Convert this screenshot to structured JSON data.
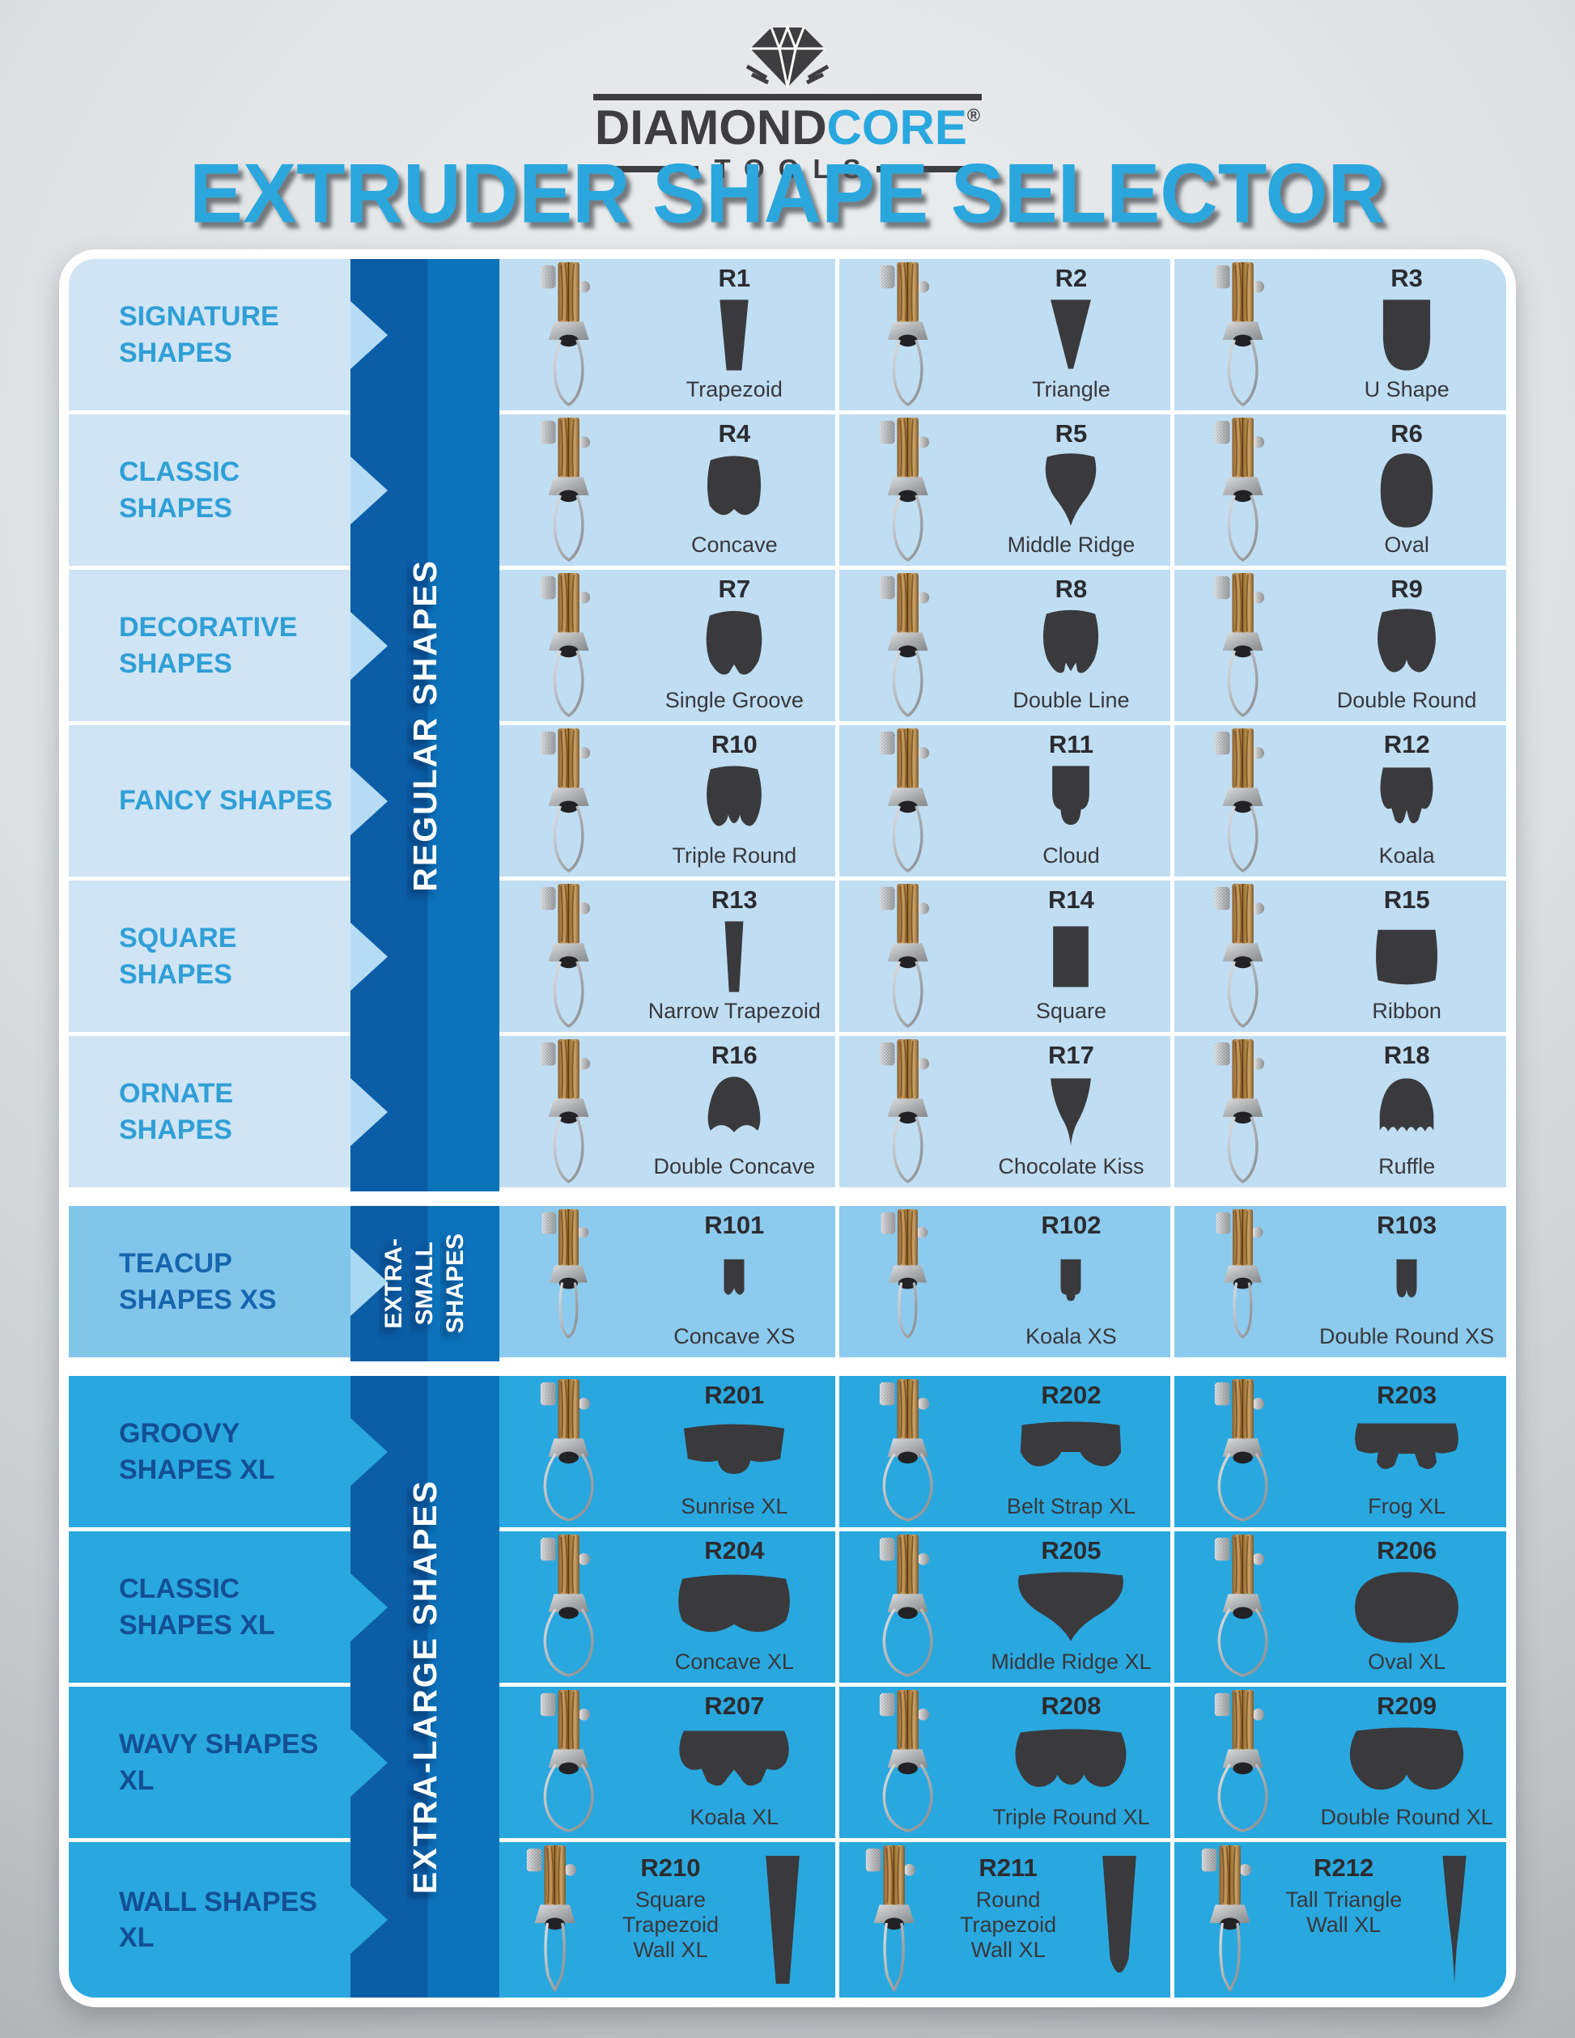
{
  "logo": {
    "diamond_icon": "diamond-icon",
    "word_dark": "DIAMOND",
    "word_blue": "CORE",
    "registered": "®",
    "tools": "TOOLS"
  },
  "title": "EXTRUDER SHAPE SELECTOR",
  "bands": [
    {
      "id": "regular",
      "lines": [
        "REGULAR SHAPES"
      ]
    },
    {
      "id": "xs",
      "lines": [
        "EXTRA-",
        "SMALL",
        "SHAPES"
      ]
    },
    {
      "id": "xl",
      "lines": [
        "EXTRA-LARGE SHAPES"
      ]
    }
  ],
  "rows": [
    {
      "category": "SIGNATURE SHAPES",
      "section": "regular",
      "items": [
        {
          "code": "R1",
          "name": "Trapezoid",
          "shape": "trapezoid"
        },
        {
          "code": "R2",
          "name": "Triangle",
          "shape": "triangle"
        },
        {
          "code": "R3",
          "name": "U Shape",
          "shape": "u-shape"
        }
      ]
    },
    {
      "category": "CLASSIC SHAPES",
      "section": "regular",
      "items": [
        {
          "code": "R4",
          "name": "Concave",
          "shape": "concave"
        },
        {
          "code": "R5",
          "name": "Middle Ridge",
          "shape": "middle-ridge"
        },
        {
          "code": "R6",
          "name": "Oval",
          "shape": "oval"
        }
      ]
    },
    {
      "category": "DECORATIVE SHAPES",
      "section": "regular",
      "items": [
        {
          "code": "R7",
          "name": "Single Groove",
          "shape": "single-groove"
        },
        {
          "code": "R8",
          "name": "Double Line",
          "shape": "double-line"
        },
        {
          "code": "R9",
          "name": "Double Round",
          "shape": "double-round"
        }
      ]
    },
    {
      "category": "FANCY SHAPES",
      "section": "regular",
      "items": [
        {
          "code": "R10",
          "name": "Triple Round",
          "shape": "triple-round"
        },
        {
          "code": "R11",
          "name": "Cloud",
          "shape": "cloud"
        },
        {
          "code": "R12",
          "name": "Koala",
          "shape": "koala"
        }
      ]
    },
    {
      "category": "SQUARE SHAPES",
      "section": "regular",
      "items": [
        {
          "code": "R13",
          "name": "Narrow Trapezoid",
          "shape": "narrow-trapezoid"
        },
        {
          "code": "R14",
          "name": "Square",
          "shape": "square"
        },
        {
          "code": "R15",
          "name": "Ribbon",
          "shape": "ribbon"
        }
      ]
    },
    {
      "category": "ORNATE SHAPES",
      "section": "regular",
      "items": [
        {
          "code": "R16",
          "name": "Double Concave",
          "shape": "double-concave"
        },
        {
          "code": "R17",
          "name": "Chocolate Kiss",
          "shape": "chocolate-kiss"
        },
        {
          "code": "R18",
          "name": "Ruffle",
          "shape": "ruffle"
        }
      ]
    },
    {
      "category": "TEACUP SHAPES XS",
      "section": "xs",
      "items": [
        {
          "code": "R101",
          "name": "Concave XS",
          "shape": "concave-xs"
        },
        {
          "code": "R102",
          "name": "Koala XS",
          "shape": "koala-xs"
        },
        {
          "code": "R103",
          "name": "Double Round XS",
          "shape": "double-round-xs"
        }
      ]
    },
    {
      "category": "GROOVY SHAPES XL",
      "section": "xl",
      "items": [
        {
          "code": "R201",
          "name": "Sunrise XL",
          "shape": "sunrise-xl"
        },
        {
          "code": "R202",
          "name": "Belt Strap XL",
          "shape": "belt-strap-xl"
        },
        {
          "code": "R203",
          "name": "Frog XL",
          "shape": "frog-xl"
        }
      ]
    },
    {
      "category": "CLASSIC SHAPES XL",
      "section": "xl",
      "items": [
        {
          "code": "R204",
          "name": "Concave XL",
          "shape": "concave-xl"
        },
        {
          "code": "R205",
          "name": "Middle Ridge XL",
          "shape": "middle-ridge-xl"
        },
        {
          "code": "R206",
          "name": "Oval XL",
          "shape": "oval-xl"
        }
      ]
    },
    {
      "category": "WAVY SHAPES XL",
      "section": "xl",
      "items": [
        {
          "code": "R207",
          "name": "Koala XL",
          "shape": "koala-xl"
        },
        {
          "code": "R208",
          "name": "Triple Round XL",
          "shape": "triple-round-xl"
        },
        {
          "code": "R209",
          "name": "Double Round XL",
          "shape": "double-round-xl"
        }
      ]
    },
    {
      "category": "WALL SHAPES XL",
      "section": "xl",
      "layout": "wall",
      "items": [
        {
          "code": "R210",
          "name": "Square Trapezoid Wall XL",
          "shape": "square-trapezoid-wall-xl"
        },
        {
          "code": "R211",
          "name": "Round Trapezoid Wall XL",
          "shape": "round-trapezoid-wall-xl"
        },
        {
          "code": "R212",
          "name": "Tall Triangle Wall XL",
          "shape": "tall-triangle-wall-xl"
        }
      ]
    }
  ],
  "colors": {
    "accent": "#29a8e0",
    "title_col": "#2ba7de",
    "band_dark": "#0b5da6",
    "band_light": "#0c72ba",
    "cell_reg": "#c0def3",
    "label_reg": "#cfe4f5",
    "cell_xs": "#8ccbee",
    "label_xs": "#82c5ea",
    "cell_xl": "#29a8e0",
    "cat_reg": "#2f9fd6",
    "cat_xs": "#1566ae",
    "cat_xl": "#134f92",
    "code_col": "#2c2c30",
    "name_col": "#38383c",
    "shape_fill": "#3a3a3d"
  }
}
